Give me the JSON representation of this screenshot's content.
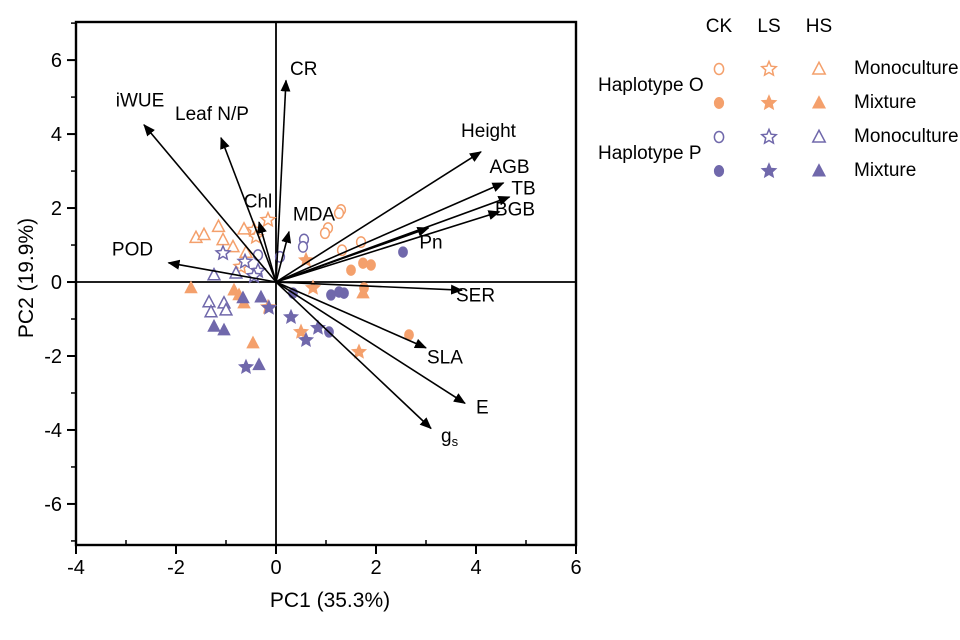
{
  "colors": {
    "haplotype_o": "#F4A06C",
    "haplotype_p": "#7068AB",
    "axis": "#000000"
  },
  "chart_data": {
    "type": "scatter",
    "xlabel": "PC1 (35.3%)",
    "ylabel": "PC2 (19.9%)",
    "xlim": [
      -4,
      6
    ],
    "ylim": [
      -7.11,
      7.03
    ],
    "x_major_ticks": [
      -4,
      -2,
      0,
      2,
      4,
      6
    ],
    "x_minor_ticks": [
      -3,
      -1,
      1,
      3,
      5
    ],
    "y_major_ticks": [
      -6,
      -4,
      -2,
      0,
      2,
      4,
      6
    ],
    "y_minor_ticks": [
      -7,
      -5,
      -3,
      -1,
      1,
      3,
      5,
      7
    ],
    "grid": false,
    "zero_lines": true,
    "legend_position": "top-right-outside",
    "loadings": [
      {
        "label": "CR",
        "x": 0.2,
        "y": 5.45,
        "label_x": 0.28,
        "label_y": 5.6,
        "anchor": "start"
      },
      {
        "label": "iWUE",
        "x": -2.64,
        "y": 4.25,
        "label_x": -2.72,
        "label_y": 4.75,
        "anchor": "middle"
      },
      {
        "label": "Leaf N/P",
        "x": -1.1,
        "y": 3.9,
        "label_x": -1.28,
        "label_y": 4.38,
        "anchor": "middle"
      },
      {
        "label": "Chl",
        "x": -0.34,
        "y": 1.62,
        "label_x": -0.36,
        "label_y": 2.02,
        "anchor": "middle"
      },
      {
        "label": "MDA",
        "x": 0.26,
        "y": 1.36,
        "label_x": 0.76,
        "label_y": 1.66,
        "anchor": "middle"
      },
      {
        "label": "Height",
        "x": 4.1,
        "y": 3.52,
        "label_x": 4.25,
        "label_y": 3.92,
        "anchor": "middle"
      },
      {
        "label": "AGB",
        "x": 4.55,
        "y": 2.68,
        "label_x": 4.67,
        "label_y": 2.95,
        "anchor": "middle"
      },
      {
        "label": "TB",
        "x": 4.67,
        "y": 2.3,
        "label_x": 4.95,
        "label_y": 2.36,
        "anchor": "middle"
      },
      {
        "label": "BGB",
        "x": 4.47,
        "y": 1.9,
        "label_x": 4.78,
        "label_y": 1.8,
        "anchor": "middle"
      },
      {
        "label": "Pn",
        "x": 3.05,
        "y": 1.46,
        "label_x": 3.1,
        "label_y": 0.9,
        "anchor": "middle"
      },
      {
        "label": "SER",
        "x": 3.72,
        "y": -0.22,
        "label_x": 3.6,
        "label_y": -0.52,
        "anchor": "start"
      },
      {
        "label": "SLA",
        "x": 3.0,
        "y": -1.78,
        "label_x": 3.02,
        "label_y": -2.2,
        "anchor": "start"
      },
      {
        "label": "E",
        "x": 3.78,
        "y": -3.28,
        "label_x": 4.0,
        "label_y": -3.55,
        "anchor": "start"
      },
      {
        "label": "g_s",
        "x": 3.1,
        "y": -3.96,
        "label_x": 3.3,
        "label_y": -4.32,
        "anchor": "start"
      },
      {
        "label": "POD",
        "x": -2.15,
        "y": 0.52,
        "label_x": -2.87,
        "label_y": 0.72,
        "anchor": "middle"
      }
    ],
    "series": [
      {
        "name": "Haplotype O CK Monoculture",
        "haplotype": "O",
        "treatment": "CK",
        "culture": "Monoculture",
        "marker": "circle",
        "fill": "open",
        "color": "#F4A06C",
        "points": [
          [
            1.3,
            1.95
          ],
          [
            1.26,
            1.86
          ],
          [
            1.04,
            1.46
          ],
          [
            0.98,
            1.32
          ],
          [
            1.7,
            1.08
          ],
          [
            1.32,
            0.86
          ]
        ]
      },
      {
        "name": "Haplotype O CK Mixture",
        "haplotype": "O",
        "treatment": "CK",
        "culture": "Mixture",
        "marker": "circle",
        "fill": "filled",
        "color": "#F4A06C",
        "points": [
          [
            1.5,
            0.32
          ],
          [
            1.74,
            0.51
          ],
          [
            1.9,
            0.46
          ],
          [
            1.76,
            -0.16
          ],
          [
            2.66,
            -1.43
          ]
        ]
      },
      {
        "name": "Haplotype O LS Monoculture",
        "haplotype": "O",
        "treatment": "LS",
        "culture": "Monoculture",
        "marker": "star",
        "fill": "open",
        "color": "#F4A06C",
        "points": [
          [
            -0.16,
            1.68
          ],
          [
            -0.44,
            1.41
          ],
          [
            -0.4,
            1.22
          ],
          [
            -0.7,
            0.41
          ]
        ]
      },
      {
        "name": "Haplotype O LS Mixture",
        "haplotype": "O",
        "treatment": "LS",
        "culture": "Mixture",
        "marker": "star",
        "fill": "filled",
        "color": "#F4A06C",
        "points": [
          [
            0.6,
            0.59
          ],
          [
            0.74,
            -0.16
          ],
          [
            -0.16,
            -0.68
          ],
          [
            0.5,
            -1.35
          ],
          [
            1.66,
            -1.89
          ]
        ]
      },
      {
        "name": "Haplotype O HS Monoculture",
        "haplotype": "O",
        "treatment": "HS",
        "culture": "Monoculture",
        "marker": "triangle",
        "fill": "open",
        "color": "#F4A06C",
        "points": [
          [
            -1.6,
            1.2
          ],
          [
            -1.44,
            1.28
          ],
          [
            -1.15,
            1.5
          ],
          [
            -1.06,
            1.14
          ],
          [
            -0.86,
            0.95
          ],
          [
            -0.64,
            1.43
          ],
          [
            -0.6,
            0.8
          ]
        ]
      },
      {
        "name": "Haplotype O HS Mixture",
        "haplotype": "O",
        "treatment": "HS",
        "culture": "Mixture",
        "marker": "triangle",
        "fill": "filled",
        "color": "#F4A06C",
        "points": [
          [
            -1.7,
            -0.16
          ],
          [
            -0.84,
            -0.22
          ],
          [
            -0.74,
            -0.35
          ],
          [
            -0.64,
            -0.57
          ],
          [
            -0.46,
            -1.65
          ],
          [
            1.74,
            -0.3
          ]
        ]
      },
      {
        "name": "Haplotype P CK Monoculture",
        "haplotype": "P",
        "treatment": "CK",
        "culture": "Monoculture",
        "marker": "circle",
        "fill": "open",
        "color": "#7068AB",
        "points": [
          [
            0.56,
            1.15
          ],
          [
            0.54,
            0.95
          ],
          [
            -0.36,
            0.73
          ],
          [
            0.08,
            0.68
          ]
        ]
      },
      {
        "name": "Haplotype P CK Mixture",
        "haplotype": "P",
        "treatment": "CK",
        "culture": "Mixture",
        "marker": "circle",
        "fill": "filled",
        "color": "#7068AB",
        "points": [
          [
            2.54,
            0.81
          ],
          [
            1.36,
            -0.3
          ],
          [
            1.26,
            -0.27
          ],
          [
            1.1,
            -0.35
          ],
          [
            0.34,
            -0.3
          ],
          [
            1.06,
            -1.35
          ]
        ]
      },
      {
        "name": "Haplotype P LS Monoculture",
        "haplotype": "P",
        "treatment": "LS",
        "culture": "Monoculture",
        "marker": "star",
        "fill": "open",
        "color": "#7068AB",
        "points": [
          [
            -1.06,
            0.78
          ],
          [
            -0.62,
            0.55
          ],
          [
            -0.36,
            0.3
          ],
          [
            -0.44,
            0.16
          ]
        ]
      },
      {
        "name": "Haplotype P LS Mixture",
        "haplotype": "P",
        "treatment": "LS",
        "culture": "Mixture",
        "marker": "star",
        "fill": "filled",
        "color": "#7068AB",
        "points": [
          [
            0.3,
            -0.95
          ],
          [
            0.84,
            -1.24
          ],
          [
            0.6,
            -1.57
          ],
          [
            -0.14,
            -0.7
          ],
          [
            -0.6,
            -2.3
          ]
        ]
      },
      {
        "name": "Haplotype P HS Monoculture",
        "haplotype": "P",
        "treatment": "HS",
        "culture": "Monoculture",
        "marker": "triangle",
        "fill": "open",
        "color": "#7068AB",
        "points": [
          [
            -1.24,
            0.19
          ],
          [
            -0.8,
            0.24
          ],
          [
            -1.34,
            -0.54
          ],
          [
            -1.04,
            -0.57
          ],
          [
            -1.3,
            -0.81
          ],
          [
            -1.0,
            -0.76
          ]
        ]
      },
      {
        "name": "Haplotype P HS Mixture",
        "haplotype": "P",
        "treatment": "HS",
        "culture": "Mixture",
        "marker": "triangle",
        "fill": "filled",
        "color": "#7068AB",
        "points": [
          [
            -0.66,
            -0.43
          ],
          [
            -0.3,
            -0.41
          ],
          [
            -1.24,
            -1.2
          ],
          [
            -1.04,
            -1.3
          ],
          [
            -0.34,
            -2.24
          ]
        ]
      }
    ]
  },
  "legend": {
    "columns": [
      "CK",
      "LS",
      "HS"
    ],
    "marker_by_column": {
      "CK": "circle",
      "LS": "star",
      "HS": "triangle"
    },
    "groups": [
      {
        "label": "Haplotype O",
        "color": "#F4A06C",
        "rows": [
          {
            "label": "Monoculture",
            "fill": "open"
          },
          {
            "label": "Mixture",
            "fill": "filled"
          }
        ]
      },
      {
        "label": "Haplotype P",
        "color": "#7068AB",
        "rows": [
          {
            "label": "Monoculture",
            "fill": "open"
          },
          {
            "label": "Mixture",
            "fill": "filled"
          }
        ]
      }
    ]
  }
}
